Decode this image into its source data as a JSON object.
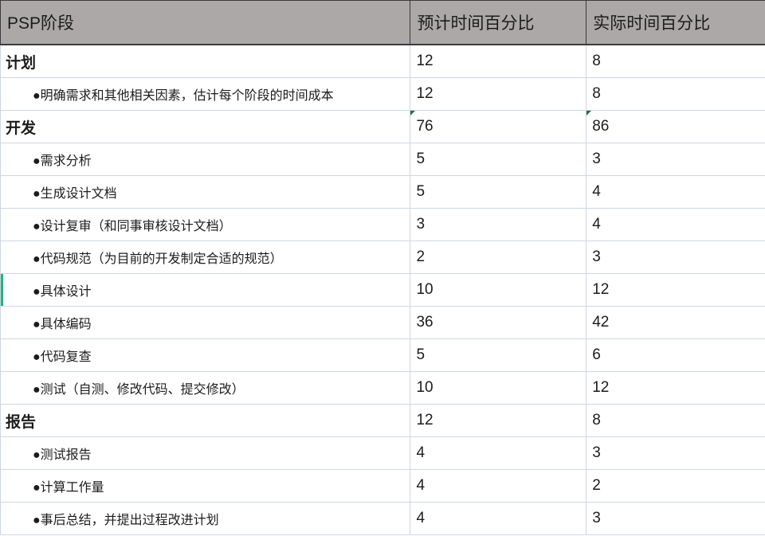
{
  "colors": {
    "header_bg": "#aba8a7",
    "header_border": "#3b3b3b",
    "grid_border": "#cdd6e4",
    "text": "#1c1c1c",
    "cell_flag_green": "#1e7145",
    "selection_bar_green": "#1fb573"
  },
  "table": {
    "columns": [
      {
        "label": "PSP阶段"
      },
      {
        "label": "预计时间百分比"
      },
      {
        "label": "实际时间百分比"
      }
    ],
    "rows": [
      {
        "label": "计划",
        "style": "section",
        "est": "12",
        "act": "8",
        "flagged": false,
        "selected": false
      },
      {
        "label": "●明确需求和其他相关因素，估计每个阶段的时间成本",
        "style": "sub",
        "est": "12",
        "act": "8",
        "flagged": false,
        "selected": false
      },
      {
        "label": "开发",
        "style": "section",
        "est": "76",
        "act": "86",
        "flagged": true,
        "selected": false
      },
      {
        "label": "●需求分析",
        "style": "sub",
        "est": "5",
        "act": "3",
        "flagged": false,
        "selected": false
      },
      {
        "label": "●生成设计文档",
        "style": "sub",
        "est": "5",
        "act": "4",
        "flagged": false,
        "selected": false
      },
      {
        "label": "●设计复审（和同事审核设计文档）",
        "style": "sub",
        "est": "3",
        "act": "4",
        "flagged": false,
        "selected": false
      },
      {
        "label": "●代码规范（为目前的开发制定合适的规范）",
        "style": "sub",
        "est": "2",
        "act": "3",
        "flagged": false,
        "selected": false
      },
      {
        "label": "●具体设计",
        "style": "sub",
        "est": "10",
        "act": "12",
        "flagged": false,
        "selected": true
      },
      {
        "label": "●具体编码",
        "style": "sub",
        "est": "36",
        "act": "42",
        "flagged": false,
        "selected": false
      },
      {
        "label": "●代码复查",
        "style": "sub",
        "est": "5",
        "act": "6",
        "flagged": false,
        "selected": false
      },
      {
        "label": "●测试（自测、修改代码、提交修改）",
        "style": "sub",
        "est": "10",
        "act": "12",
        "flagged": false,
        "selected": false
      },
      {
        "label": "报告",
        "style": "section",
        "est": "12",
        "act": "8",
        "flagged": false,
        "selected": false
      },
      {
        "label": "●测试报告",
        "style": "sub",
        "est": "4",
        "act": "3",
        "flagged": false,
        "selected": false
      },
      {
        "label": "●计算工作量",
        "style": "sub",
        "est": "4",
        "act": "2",
        "flagged": false,
        "selected": false
      },
      {
        "label": "●事后总结，并提出过程改进计划",
        "style": "sub",
        "est": "4",
        "act": "3",
        "flagged": false,
        "selected": false
      }
    ]
  }
}
